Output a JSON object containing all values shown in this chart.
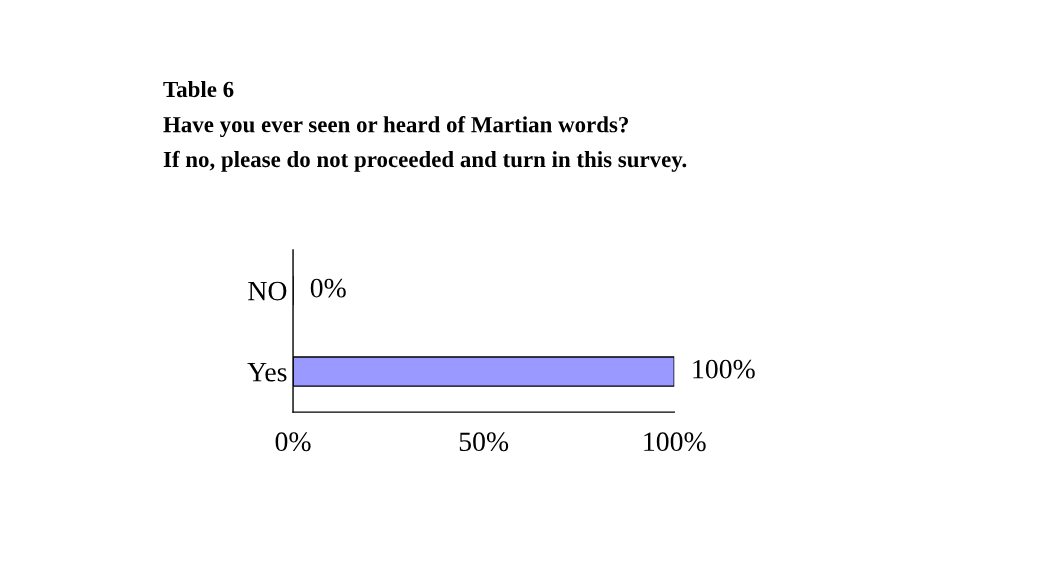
{
  "chart_data": {
    "type": "bar",
    "orientation": "horizontal",
    "title": "Table 6",
    "subtitle": "Have you ever seen or heard of Martian words?\nIf no, please do not proceeded and turn in this survey.",
    "categories": [
      "NO",
      "Yes"
    ],
    "values": [
      0,
      100
    ],
    "colors": [
      "#660033",
      "#9999ff"
    ],
    "value_labels": [
      "0%",
      "100%"
    ],
    "xlim": [
      0,
      100
    ],
    "xticks": [
      {
        "value": 0,
        "label": "0%"
      },
      {
        "value": 50,
        "label": "50%"
      },
      {
        "value": 100,
        "label": "100%"
      }
    ],
    "grid": false,
    "legend": false
  }
}
